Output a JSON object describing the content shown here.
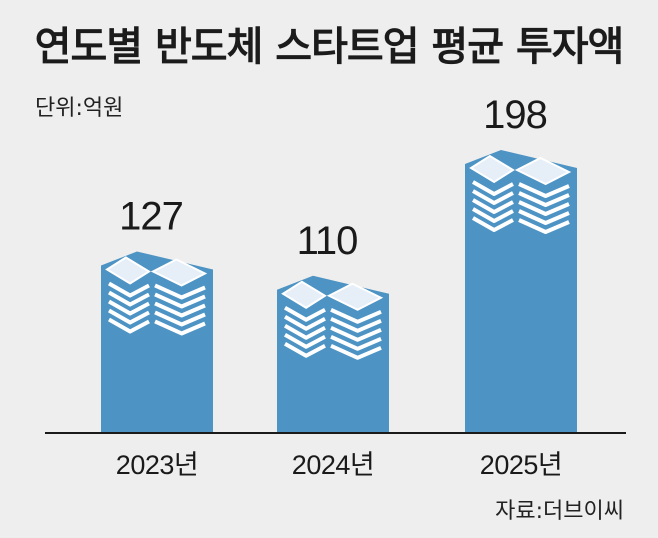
{
  "header": {
    "title": "연도별 반도체 스타트업 평균 투자액",
    "unit": "단위:억원"
  },
  "footer": {
    "source": "자료:더브이씨"
  },
  "colors": {
    "bar": "#4d93c4",
    "bar_top": "#5b9fcd",
    "bundle_edge": "#ffffff",
    "bundle_fill": "#e6eef8",
    "background": "#eeeeee",
    "axis": "#1a1a1a"
  },
  "icons": {
    "bar_top": "money-stack-icon"
  },
  "chart_data": {
    "type": "bar",
    "title": "연도별 반도체 스타트업 평균 투자액",
    "unit": "단위:억원",
    "categories": [
      "2023년",
      "2024년",
      "2025년"
    ],
    "values": [
      127,
      110,
      198
    ],
    "value_labels": [
      "127",
      "110",
      "198"
    ],
    "ylim": [
      0,
      198
    ],
    "grid": false,
    "legend": "none"
  }
}
